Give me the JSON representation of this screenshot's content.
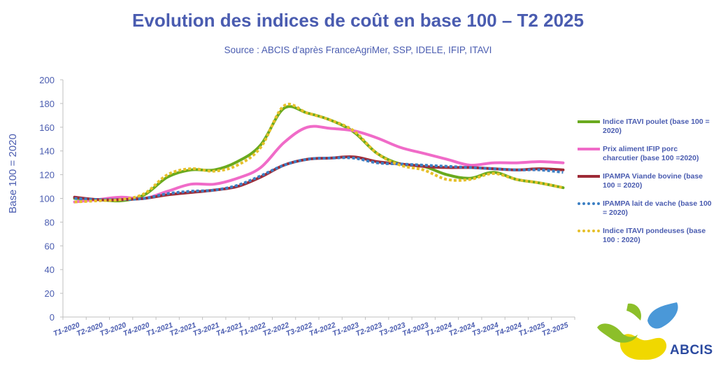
{
  "chart_data": {
    "type": "line",
    "title": "Evolution des indices de coût en base 100 – T2 2025",
    "subtitle": "Source : ABCIS d'après FranceAgriMer, SSP, IDELE, IFIP, ITAVI",
    "xlabel": "",
    "ylabel": "Base 100 = 2020",
    "ylim": [
      0,
      200
    ],
    "yticks": [
      0,
      20,
      40,
      60,
      80,
      100,
      120,
      140,
      160,
      180,
      200
    ],
    "grid": false,
    "legend_position": "right",
    "categories": [
      "T1-2020",
      "T2-2020",
      "T3-2020",
      "T4-2020",
      "T1-2021",
      "T2-2021",
      "T3-2021",
      "T4-2021",
      "T1-2022",
      "T2-2022",
      "T3-2022",
      "T4-2022",
      "T1-2023",
      "T2-2023",
      "T3-2023",
      "T4-2023",
      "T1-2024",
      "T2-2024",
      "T3-2024",
      "T4-2024",
      "T1-2025",
      "T2-2025"
    ],
    "series": [
      {
        "name": "Indice ITAVI poulet (base 100 = 2020)",
        "color": "#6aaa1e",
        "dash": "solid",
        "values": [
          100,
          99,
          98,
          103,
          118,
          124,
          124,
          131,
          145,
          176,
          172,
          166,
          156,
          138,
          129,
          127,
          120,
          117,
          122,
          116,
          113,
          109
        ]
      },
      {
        "name": "Prix aliment IFIP porc charcutier (base 100 =2020)",
        "color": "#f06bc8",
        "dash": "solid",
        "values": [
          97,
          99,
          101,
          100,
          106,
          112,
          112,
          117,
          126,
          147,
          160,
          159,
          157,
          151,
          143,
          138,
          133,
          128,
          130,
          130,
          131,
          130
        ]
      },
      {
        "name": "IPAMPA Viande bovine (base 100 = 2020)",
        "color": "#9e2a36",
        "dash": "solid",
        "values": [
          101,
          99,
          99,
          100,
          103,
          105,
          107,
          110,
          118,
          128,
          133,
          134,
          135,
          131,
          129,
          127,
          126,
          126,
          125,
          124,
          125,
          124
        ]
      },
      {
        "name": "IPAMPA lait de vache (base 100 = 2020)",
        "color": "#3b7fc4",
        "dash": "dotted",
        "values": [
          100,
          99,
          99,
          100,
          104,
          106,
          107,
          111,
          119,
          128,
          133,
          134,
          134,
          130,
          129,
          128,
          127,
          126,
          125,
          124,
          124,
          122
        ]
      },
      {
        "name": "Indice ITAVI pondeuses (base 100 : 2020)",
        "color": "#e6c02a",
        "dash": "dotted",
        "values": [
          97,
          98,
          99,
          104,
          120,
          125,
          123,
          128,
          143,
          178,
          172,
          166,
          157,
          138,
          128,
          124,
          116,
          116,
          121,
          116,
          113,
          109
        ]
      }
    ]
  },
  "logo": {
    "text": "ABCIS"
  }
}
